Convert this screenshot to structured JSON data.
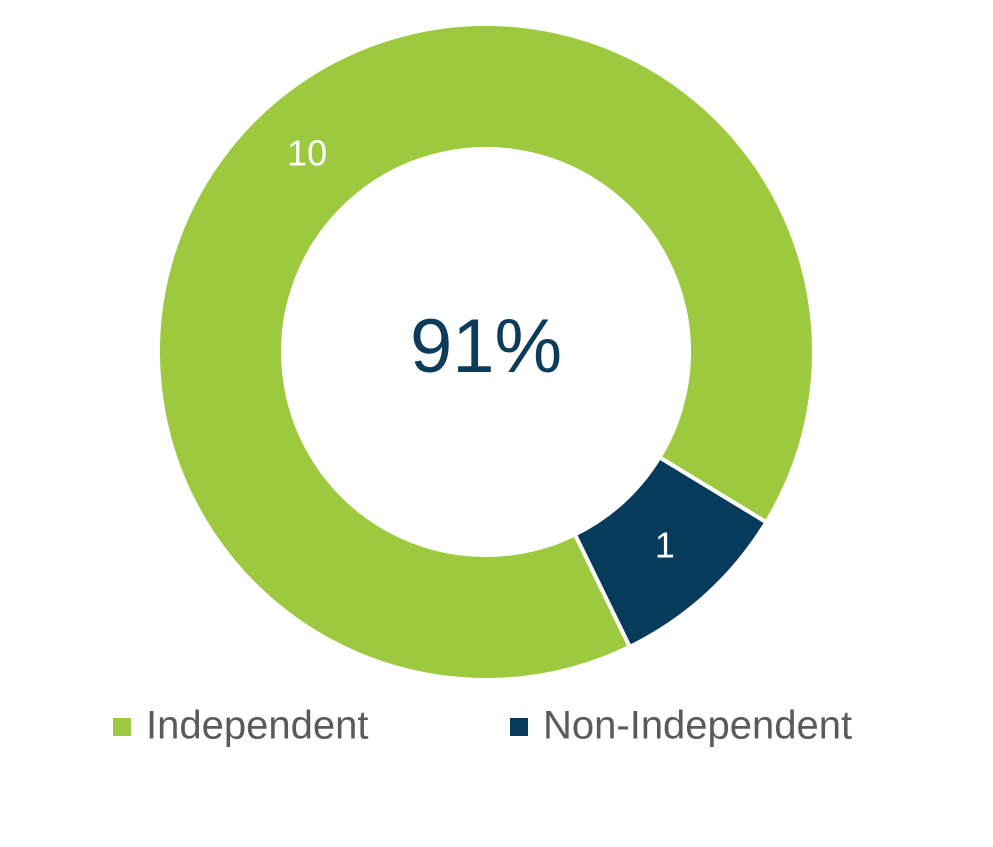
{
  "chart_data": {
    "type": "donut",
    "categories": [
      "Independent",
      "Non-Independent"
    ],
    "values": [
      10,
      1
    ],
    "colors": [
      "#9dc93f",
      "#073b5b"
    ],
    "center_text": "91%",
    "legend": "bottom"
  }
}
